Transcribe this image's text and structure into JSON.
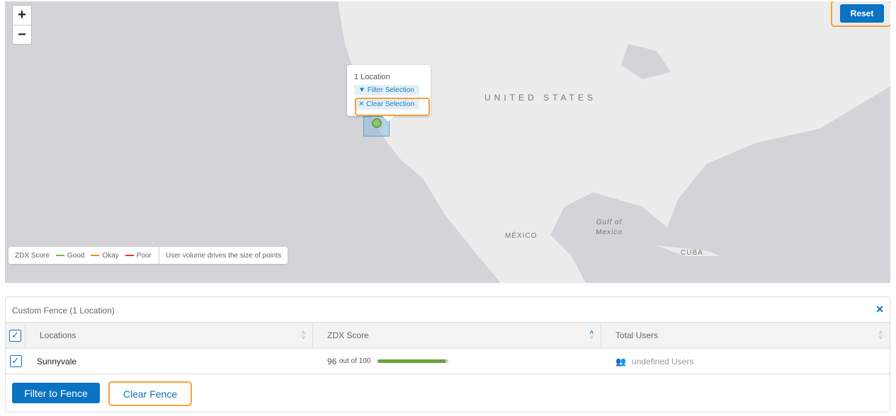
{
  "map": {
    "zoom_in": "+",
    "zoom_out": "−",
    "reset_label": "Reset",
    "labels": {
      "us": "UNITED STATES",
      "mexico": "MÉXICO",
      "gulf": "Gulf of Mexico",
      "cuba": "CUBA"
    },
    "popup": {
      "title": "1 Location",
      "filter_label": "Filter Selection",
      "clear_label": "Clear Selection"
    },
    "legend": {
      "title": "ZDX Score",
      "good": "Good",
      "okay": "Okay",
      "poor": "Poor",
      "note": "User volume drives the size of points",
      "colors": {
        "good": "#7cb342",
        "okay": "#ef8a17",
        "poor": "#e53935"
      }
    }
  },
  "panel": {
    "title": "Custom Fence (1 Location)",
    "columns": [
      "Locations",
      "ZDX Score",
      "Total Users"
    ],
    "rows": [
      {
        "location": "Sunnyvale",
        "score": "96",
        "score_suffix": "out of 100",
        "score_pct": 96,
        "users": "undefined Users"
      }
    ],
    "filter_button": "Filter to Fence",
    "clear_button": "Clear Fence"
  }
}
